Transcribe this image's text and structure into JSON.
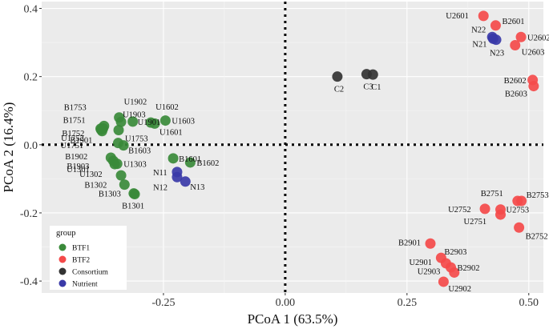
{
  "chart_data": {
    "type": "scatter",
    "xlabel": "PCoA 1 (63.5%)",
    "ylabel": "PCoA 2 (16.4%)",
    "xlim": [
      -0.5,
      0.53
    ],
    "ylim": [
      -0.435,
      0.42
    ],
    "x_ticks": [
      -0.25,
      0.0,
      0.25,
      0.5
    ],
    "x_tick_labels": [
      "-0.25",
      "0.00",
      "0.25",
      "0.50"
    ],
    "y_ticks": [
      0.4,
      0.2,
      0.0,
      -0.2,
      -0.4
    ],
    "y_tick_labels": [
      "0.4",
      "0.2",
      "0.0",
      "-0.2",
      "-0.4"
    ],
    "zero_lines": true,
    "legend": {
      "title": "group",
      "position": "bottom-left",
      "entries": [
        {
          "name": "BTF1",
          "color": "#3a8a3a"
        },
        {
          "name": "BTF2",
          "color": "#f44a4a"
        },
        {
          "name": "Consortium",
          "color": "#333333"
        },
        {
          "name": "Nutrient",
          "color": "#3a3aa8"
        }
      ]
    },
    "series": [
      {
        "name": "BTF1",
        "color": "#3a8a3a",
        "points": [
          {
            "label": "B1753",
            "x": -0.372,
            "y": 0.055
          },
          {
            "label": "B1751",
            "x": -0.374,
            "y": 0.048
          },
          {
            "label": "B1752",
            "x": -0.376,
            "y": 0.04
          },
          {
            "label": "U1752",
            "x": -0.378,
            "y": 0.044
          },
          {
            "label": "U1751",
            "x": -0.379,
            "y": 0.047
          },
          {
            "label": "U1902",
            "x": -0.341,
            "y": 0.08
          },
          {
            "label": "U1903",
            "x": -0.337,
            "y": 0.067
          },
          {
            "label": "U1901",
            "x": -0.313,
            "y": 0.068
          },
          {
            "label": "U1602",
            "x": -0.276,
            "y": 0.065
          },
          {
            "label": "U1603",
            "x": -0.246,
            "y": 0.071
          },
          {
            "label": "U1601",
            "x": -0.268,
            "y": 0.062
          },
          {
            "label": "U1753",
            "x": -0.342,
            "y": 0.043
          },
          {
            "label": "B1901",
            "x": -0.343,
            "y": 0.005
          },
          {
            "label": "B1603",
            "x": -0.332,
            "y": -0.002
          },
          {
            "label": "B1902",
            "x": -0.358,
            "y": -0.038
          },
          {
            "label": "B1903",
            "x": -0.353,
            "y": -0.047
          },
          {
            "label": "U1301",
            "x": -0.35,
            "y": -0.057
          },
          {
            "label": "U1303",
            "x": -0.345,
            "y": -0.056
          },
          {
            "label": "U1302",
            "x": -0.337,
            "y": -0.09
          },
          {
            "label": "B1302",
            "x": -0.33,
            "y": -0.117
          },
          {
            "label": "B1303",
            "x": -0.311,
            "y": -0.143
          },
          {
            "label": "B1301",
            "x": -0.309,
            "y": -0.145
          },
          {
            "label": "B1601",
            "x": -0.23,
            "y": -0.04
          },
          {
            "label": "B1602",
            "x": -0.195,
            "y": -0.052
          }
        ]
      },
      {
        "name": "BTF2",
        "color": "#f44a4a",
        "points": [
          {
            "label": "U2601",
            "x": 0.407,
            "y": 0.378
          },
          {
            "label": "B2601",
            "x": 0.432,
            "y": 0.35
          },
          {
            "label": "U2602",
            "x": 0.484,
            "y": 0.316
          },
          {
            "label": "U2603",
            "x": 0.472,
            "y": 0.292
          },
          {
            "label": "B2602",
            "x": 0.508,
            "y": 0.19
          },
          {
            "label": "B2603",
            "x": 0.51,
            "y": 0.172
          },
          {
            "label": "B2751",
            "x": 0.477,
            "y": -0.165
          },
          {
            "label": "B2753",
            "x": 0.485,
            "y": -0.165
          },
          {
            "label": "U2752",
            "x": 0.41,
            "y": -0.188
          },
          {
            "label": "U2753",
            "x": 0.442,
            "y": -0.19
          },
          {
            "label": "U2751",
            "x": 0.442,
            "y": -0.205
          },
          {
            "label": "B2752",
            "x": 0.48,
            "y": -0.243
          },
          {
            "label": "B2901",
            "x": 0.298,
            "y": -0.29
          },
          {
            "label": "B2903",
            "x": 0.32,
            "y": -0.332
          },
          {
            "label": "U2901",
            "x": 0.33,
            "y": -0.348
          },
          {
            "label": "B2902",
            "x": 0.34,
            "y": -0.36
          },
          {
            "label": "U2903",
            "x": 0.347,
            "y": -0.375
          },
          {
            "label": "U2902",
            "x": 0.325,
            "y": -0.402
          }
        ]
      },
      {
        "name": "Consortium",
        "color": "#333333",
        "points": [
          {
            "label": "C2",
            "x": 0.107,
            "y": 0.2
          },
          {
            "label": "C3",
            "x": 0.167,
            "y": 0.207
          },
          {
            "label": "C1",
            "x": 0.18,
            "y": 0.206
          }
        ]
      },
      {
        "name": "Nutrient",
        "color": "#3a3aa8",
        "points": [
          {
            "label": "N22",
            "x": 0.425,
            "y": 0.316
          },
          {
            "label": "N21",
            "x": 0.427,
            "y": 0.311
          },
          {
            "label": "N23",
            "x": 0.433,
            "y": 0.308
          },
          {
            "label": "N11",
            "x": -0.222,
            "y": -0.08
          },
          {
            "label": "N12",
            "x": -0.222,
            "y": -0.095
          },
          {
            "label": "N13",
            "x": -0.205,
            "y": -0.108
          }
        ]
      }
    ]
  }
}
